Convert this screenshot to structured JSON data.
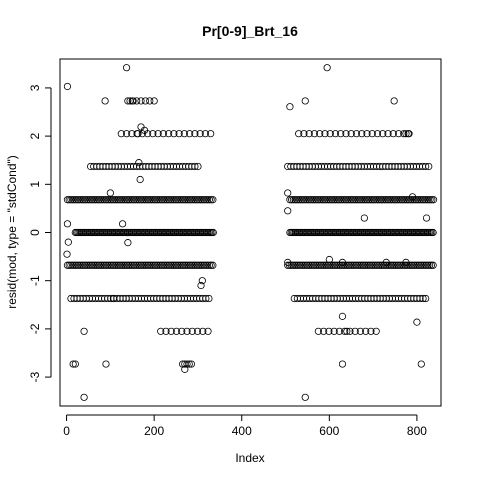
{
  "chart_data": {
    "type": "scatter",
    "title": "Pr[0-9]_Brt_16",
    "xlabel": "Index",
    "ylabel": "resid(mod, type = \"stdCond\")",
    "xlim": [
      -15,
      855
    ],
    "ylim": [
      -3.6,
      3.6
    ],
    "xticks": [
      0,
      200,
      400,
      600,
      800
    ],
    "yticks": [
      -3,
      -2,
      -1,
      0,
      1,
      2,
      3
    ],
    "grid": false,
    "marker": "open-circle",
    "point_color": "#000000",
    "segments": [
      {
        "x_start": 1,
        "x_end": 335
      },
      {
        "x_start": 505,
        "x_end": 838
      }
    ],
    "levels": [
      {
        "y": 0.0,
        "x_ranges": [
          [
            20,
            335
          ],
          [
            510,
            838
          ]
        ],
        "step": 3
      },
      {
        "y": -0.68,
        "x_ranges": [
          [
            2,
            335
          ],
          [
            505,
            838
          ]
        ],
        "step": 4
      },
      {
        "y": 0.68,
        "x_ranges": [
          [
            2,
            335
          ],
          [
            510,
            838
          ]
        ],
        "step": 4
      },
      {
        "y": 1.37,
        "x_ranges": [
          [
            55,
            300
          ],
          [
            505,
            830
          ]
        ],
        "step": 7
      },
      {
        "y": -1.37,
        "x_ranges": [
          [
            10,
            330
          ],
          [
            520,
            818
          ]
        ],
        "step": 7
      },
      {
        "y": 2.05,
        "x_ranges": [
          [
            125,
            333
          ],
          [
            530,
            790
          ]
        ],
        "step": 12
      },
      {
        "y": -2.05,
        "x_ranges": [
          [
            215,
            325
          ],
          [
            575,
            715
          ]
        ],
        "step": 12
      },
      {
        "y": 2.73,
        "x_ranges": [
          [
            140,
            205
          ]
        ],
        "step": 10
      },
      {
        "y": -2.73,
        "x_ranges": [
          [
            15,
            20
          ],
          [
            265,
            285
          ]
        ],
        "step": 5
      }
    ],
    "extra_points": [
      [
        2,
        3.03
      ],
      [
        137,
        3.42
      ],
      [
        595,
        3.42
      ],
      [
        88,
        2.73
      ],
      [
        145,
        2.73
      ],
      [
        152,
        2.73
      ],
      [
        545,
        2.73
      ],
      [
        748,
        2.73
      ],
      [
        510,
        2.61
      ],
      [
        775,
        2.05
      ],
      [
        780,
        2.05
      ],
      [
        170,
        2.19
      ],
      [
        178,
        2.12
      ],
      [
        163,
        2.05
      ],
      [
        165,
        1.45
      ],
      [
        168,
        1.1
      ],
      [
        100,
        0.82
      ],
      [
        505,
        0.82
      ],
      [
        790,
        0.74
      ],
      [
        128,
        0.18
      ],
      [
        2,
        0.18
      ],
      [
        505,
        0.45
      ],
      [
        680,
        0.3
      ],
      [
        822,
        0.3
      ],
      [
        4,
        -0.2
      ],
      [
        140,
        -0.21
      ],
      [
        1,
        -0.45
      ],
      [
        600,
        -0.56
      ],
      [
        630,
        -0.62
      ],
      [
        505,
        -0.62
      ],
      [
        730,
        -0.62
      ],
      [
        775,
        -0.62
      ],
      [
        307,
        -1.1
      ],
      [
        310,
        -1.0
      ],
      [
        107,
        -1.37
      ],
      [
        820,
        -1.37
      ],
      [
        40,
        -2.05
      ],
      [
        630,
        -1.74
      ],
      [
        640,
        -2.05
      ],
      [
        800,
        -1.86
      ],
      [
        90,
        -2.73
      ],
      [
        630,
        -2.73
      ],
      [
        810,
        -2.73
      ],
      [
        270,
        -2.84
      ],
      [
        40,
        -3.42
      ],
      [
        545,
        -3.42
      ]
    ]
  }
}
